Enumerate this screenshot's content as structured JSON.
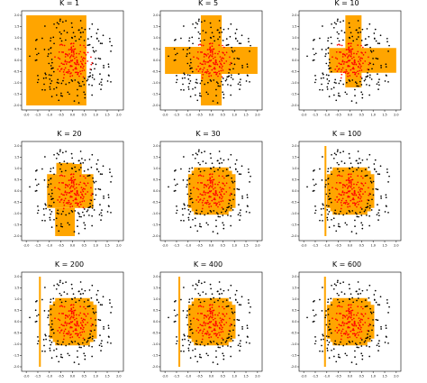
{
  "figure": {
    "background": "#ffffff",
    "region_color": "#ffa500",
    "outside_point_color": "#000000",
    "inside_point_color": "#ff0000",
    "point_count": 300,
    "point_radius_data": 1.9
  },
  "chart_data": [
    {
      "type": "scatter",
      "title": "K = 1",
      "xlim": [
        -2.2,
        2.2
      ],
      "ylim": [
        -2.2,
        2.2
      ],
      "xticks": [
        -2.0,
        -1.5,
        -1.0,
        -0.5,
        0.0,
        0.5,
        1.0,
        1.5,
        2.0
      ],
      "yticks": [
        -2.0,
        -1.5,
        -1.0,
        -0.5,
        0.0,
        0.5,
        1.0,
        1.5,
        2.0
      ],
      "regions": [
        [
          -2.0,
          -2.0,
          0.6,
          2.0
        ]
      ],
      "grid": false
    },
    {
      "type": "scatter",
      "title": "K = 5",
      "xlim": [
        -2.2,
        2.2
      ],
      "ylim": [
        -2.2,
        2.2
      ],
      "xticks": [
        -2.0,
        -1.5,
        -1.0,
        -0.5,
        0.0,
        0.5,
        1.0,
        1.5,
        2.0
      ],
      "yticks": [
        -2.0,
        -1.5,
        -1.0,
        -0.5,
        0.0,
        0.5,
        1.0,
        1.5,
        2.0
      ],
      "regions": [
        [
          -2.0,
          -0.6,
          2.0,
          0.6
        ],
        [
          -0.45,
          -2.0,
          0.45,
          2.0
        ]
      ],
      "grid": false
    },
    {
      "type": "scatter",
      "title": "K = 10",
      "xlim": [
        -2.2,
        2.2
      ],
      "ylim": [
        -2.2,
        2.2
      ],
      "xticks": [
        -2.0,
        -1.5,
        -1.0,
        -0.5,
        0.0,
        0.5,
        1.0,
        1.5,
        2.0
      ],
      "yticks": [
        -2.0,
        -1.5,
        -1.0,
        -0.5,
        0.0,
        0.5,
        1.0,
        1.5,
        2.0
      ],
      "regions": [
        [
          -0.9,
          -0.55,
          2.0,
          0.55
        ],
        [
          -0.2,
          -1.2,
          0.5,
          2.0
        ]
      ],
      "grid": false
    },
    {
      "type": "scatter",
      "title": "K = 20",
      "xlim": [
        -2.2,
        2.2
      ],
      "ylim": [
        -2.2,
        2.2
      ],
      "xticks": [
        -2.0,
        -1.5,
        -1.0,
        -0.5,
        0.0,
        0.5,
        1.0,
        1.5,
        2.0
      ],
      "yticks": [
        -2.0,
        -1.5,
        -1.0,
        -0.5,
        0.0,
        0.5,
        1.0,
        1.5,
        2.0
      ],
      "regions": [
        [
          -1.1,
          -0.75,
          0.9,
          0.75
        ],
        [
          -0.7,
          0.75,
          0.0,
          1.25
        ],
        [
          -0.75,
          -2.0,
          0.1,
          -0.75
        ],
        [
          -0.3,
          0.6,
          0.4,
          1.2
        ]
      ],
      "grid": false
    },
    {
      "type": "scatter",
      "title": "K = 30",
      "xlim": [
        -2.2,
        2.2
      ],
      "ylim": [
        -2.2,
        2.2
      ],
      "xticks": [
        -2.0,
        -1.5,
        -1.0,
        -0.5,
        0.0,
        0.5,
        1.0,
        1.5,
        2.0
      ],
      "yticks": [
        -2.0,
        -1.5,
        -1.0,
        -0.5,
        0.0,
        0.5,
        1.0,
        1.5,
        2.0
      ],
      "regions": [
        [
          -1.0,
          -0.75,
          1.05,
          0.75
        ],
        [
          -0.75,
          -1.05,
          0.75,
          1.05
        ],
        [
          -0.85,
          -0.9,
          0.9,
          0.9
        ]
      ],
      "grid": false
    },
    {
      "type": "scatter",
      "title": "K = 100",
      "xlim": [
        -2.2,
        2.2
      ],
      "ylim": [
        -2.2,
        2.2
      ],
      "xticks": [
        -2.0,
        -1.5,
        -1.0,
        -0.5,
        0.0,
        0.5,
        1.0,
        1.5,
        2.0
      ],
      "yticks": [
        -2.0,
        -1.5,
        -1.0,
        -0.5,
        0.0,
        0.5,
        1.0,
        1.5,
        2.0
      ],
      "regions": [
        [
          -1.0,
          -0.75,
          1.05,
          0.75
        ],
        [
          -0.75,
          -1.05,
          0.75,
          1.05
        ],
        [
          -0.85,
          -0.9,
          0.9,
          0.9
        ],
        [
          -1.1,
          -2.0,
          -1.02,
          2.0
        ]
      ],
      "grid": false
    },
    {
      "type": "scatter",
      "title": "K = 200",
      "xlim": [
        -2.2,
        2.2
      ],
      "ylim": [
        -2.2,
        2.2
      ],
      "xticks": [
        -2.0,
        -1.5,
        -1.0,
        -0.5,
        0.0,
        0.5,
        1.0,
        1.5,
        2.0
      ],
      "yticks": [
        -2.0,
        -1.5,
        -1.0,
        -0.5,
        0.0,
        0.5,
        1.0,
        1.5,
        2.0
      ],
      "regions": [
        [
          -1.0,
          -0.75,
          1.05,
          0.75
        ],
        [
          -0.75,
          -1.05,
          0.75,
          1.05
        ],
        [
          -0.85,
          -0.9,
          0.9,
          0.9
        ],
        [
          -1.45,
          -2.0,
          -1.37,
          2.0
        ]
      ],
      "grid": false
    },
    {
      "type": "scatter",
      "title": "K = 400",
      "xlim": [
        -2.2,
        2.2
      ],
      "ylim": [
        -2.2,
        2.2
      ],
      "xticks": [
        -2.0,
        -1.5,
        -1.0,
        -0.5,
        0.0,
        0.5,
        1.0,
        1.5,
        2.0
      ],
      "yticks": [
        -2.0,
        -1.5,
        -1.0,
        -0.5,
        0.0,
        0.5,
        1.0,
        1.5,
        2.0
      ],
      "regions": [
        [
          -1.0,
          -0.75,
          1.05,
          0.75
        ],
        [
          -0.75,
          -1.05,
          0.75,
          1.05
        ],
        [
          -0.85,
          -0.9,
          0.9,
          0.9
        ],
        [
          -1.42,
          -2.0,
          -1.34,
          2.0
        ]
      ],
      "grid": false
    },
    {
      "type": "scatter",
      "title": "K = 600",
      "xlim": [
        -2.2,
        2.2
      ],
      "ylim": [
        -2.2,
        2.2
      ],
      "xticks": [
        -2.0,
        -1.5,
        -1.0,
        -0.5,
        0.0,
        0.5,
        1.0,
        1.5,
        2.0
      ],
      "yticks": [
        -2.0,
        -1.5,
        -1.0,
        -0.5,
        0.0,
        0.5,
        1.0,
        1.5,
        2.0
      ],
      "regions": [
        [
          -1.0,
          -0.75,
          1.05,
          0.75
        ],
        [
          -0.75,
          -1.05,
          0.75,
          1.05
        ],
        [
          -0.85,
          -0.9,
          0.9,
          0.9
        ],
        [
          -1.12,
          -2.0,
          -1.04,
          2.0
        ]
      ],
      "grid": false
    }
  ]
}
